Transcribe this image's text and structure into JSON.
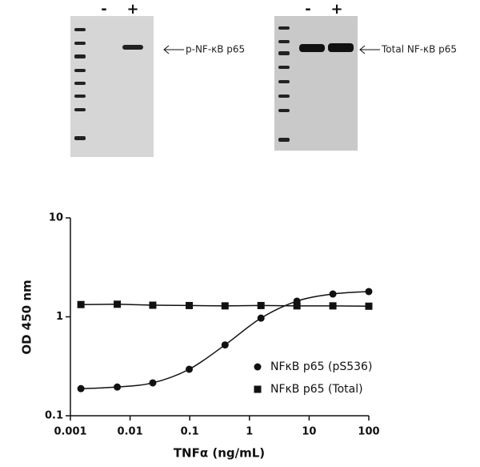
{
  "blots": [
    {
      "lanes": [
        "-",
        "+"
      ],
      "label": "p-NF-κB p65"
    },
    {
      "lanes": [
        "-",
        "+"
      ],
      "label": "Total NF-κB p65"
    }
  ],
  "chart_data": {
    "type": "scatter",
    "x_label": "TNFα (ng/mL)",
    "y_label": "OD 450 nm",
    "xscale": "log",
    "yscale": "log",
    "xlim": [
      0.001,
      100
    ],
    "ylim": [
      0.1,
      10
    ],
    "xticks": [
      0.001,
      0.01,
      0.1,
      1,
      10,
      100
    ],
    "yticks": [
      0.1,
      1,
      10
    ],
    "legend": "lower right",
    "x": [
      0.0015,
      0.0061,
      0.024,
      0.098,
      0.39,
      1.56,
      6.25,
      25,
      100
    ],
    "series": [
      {
        "name": "NFκB p65 (pS536)",
        "color": "#111111",
        "marker": "circle",
        "curve": "smooth",
        "values": [
          0.188,
          0.195,
          0.215,
          0.295,
          0.52,
          0.97,
          1.44,
          1.7,
          1.8
        ]
      },
      {
        "name": "NFκB p65 (Total)",
        "color": "#111111",
        "marker": "square",
        "curve": "straight",
        "values": [
          1.33,
          1.34,
          1.31,
          1.3,
          1.29,
          1.3,
          1.29,
          1.29,
          1.28
        ]
      }
    ]
  }
}
